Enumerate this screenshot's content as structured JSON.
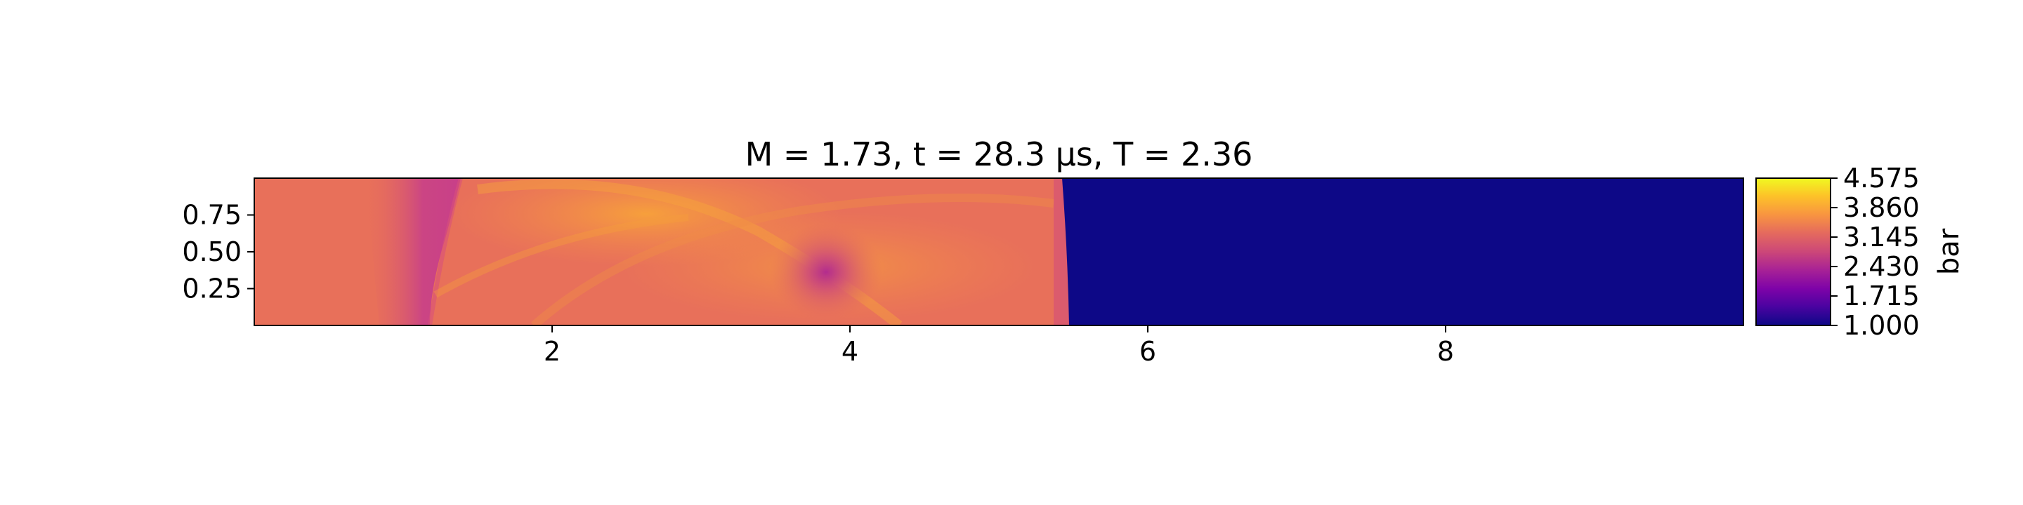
{
  "chart_data": {
    "type": "heatmap",
    "title": "M = 1.73, t = 28.3 μs, T = 2.36",
    "xlabel": "",
    "ylabel": "",
    "xlim": [
      0.0,
      10.0
    ],
    "ylim": [
      0.0,
      1.0
    ],
    "x_ticks": [
      2,
      4,
      6,
      8
    ],
    "x_tick_labels": [
      "2",
      "4",
      "6",
      "8"
    ],
    "y_ticks": [
      0.25,
      0.5,
      0.75
    ],
    "y_tick_labels": [
      "0.25",
      "0.50",
      "0.75"
    ],
    "colormap": "plasma",
    "colorbar": {
      "label": "bar",
      "range": [
        1.0,
        4.575
      ],
      "ticks": [
        1.0,
        1.715,
        2.43,
        3.145,
        3.86,
        4.575
      ],
      "tick_labels": [
        "1.000",
        "1.715",
        "2.430",
        "3.145",
        "3.860",
        "4.575"
      ]
    },
    "field_summary": {
      "shock_front_x": 5.45,
      "pre_shock_value": 1.0,
      "post_shock_typical_value": 3.1,
      "hot_region_value": 3.7,
      "vortex_center": [
        3.85,
        0.36
      ],
      "vortex_core_value": 2.4,
      "low_pressure_band_x": [
        1.0,
        1.4
      ],
      "low_pressure_band_value": 2.6
    },
    "colors": {
      "pre_shock": "#0d0887",
      "post_shock": "#e86b5c",
      "hot_region": "#f49a3f",
      "low_region": "#c63d8b"
    }
  }
}
